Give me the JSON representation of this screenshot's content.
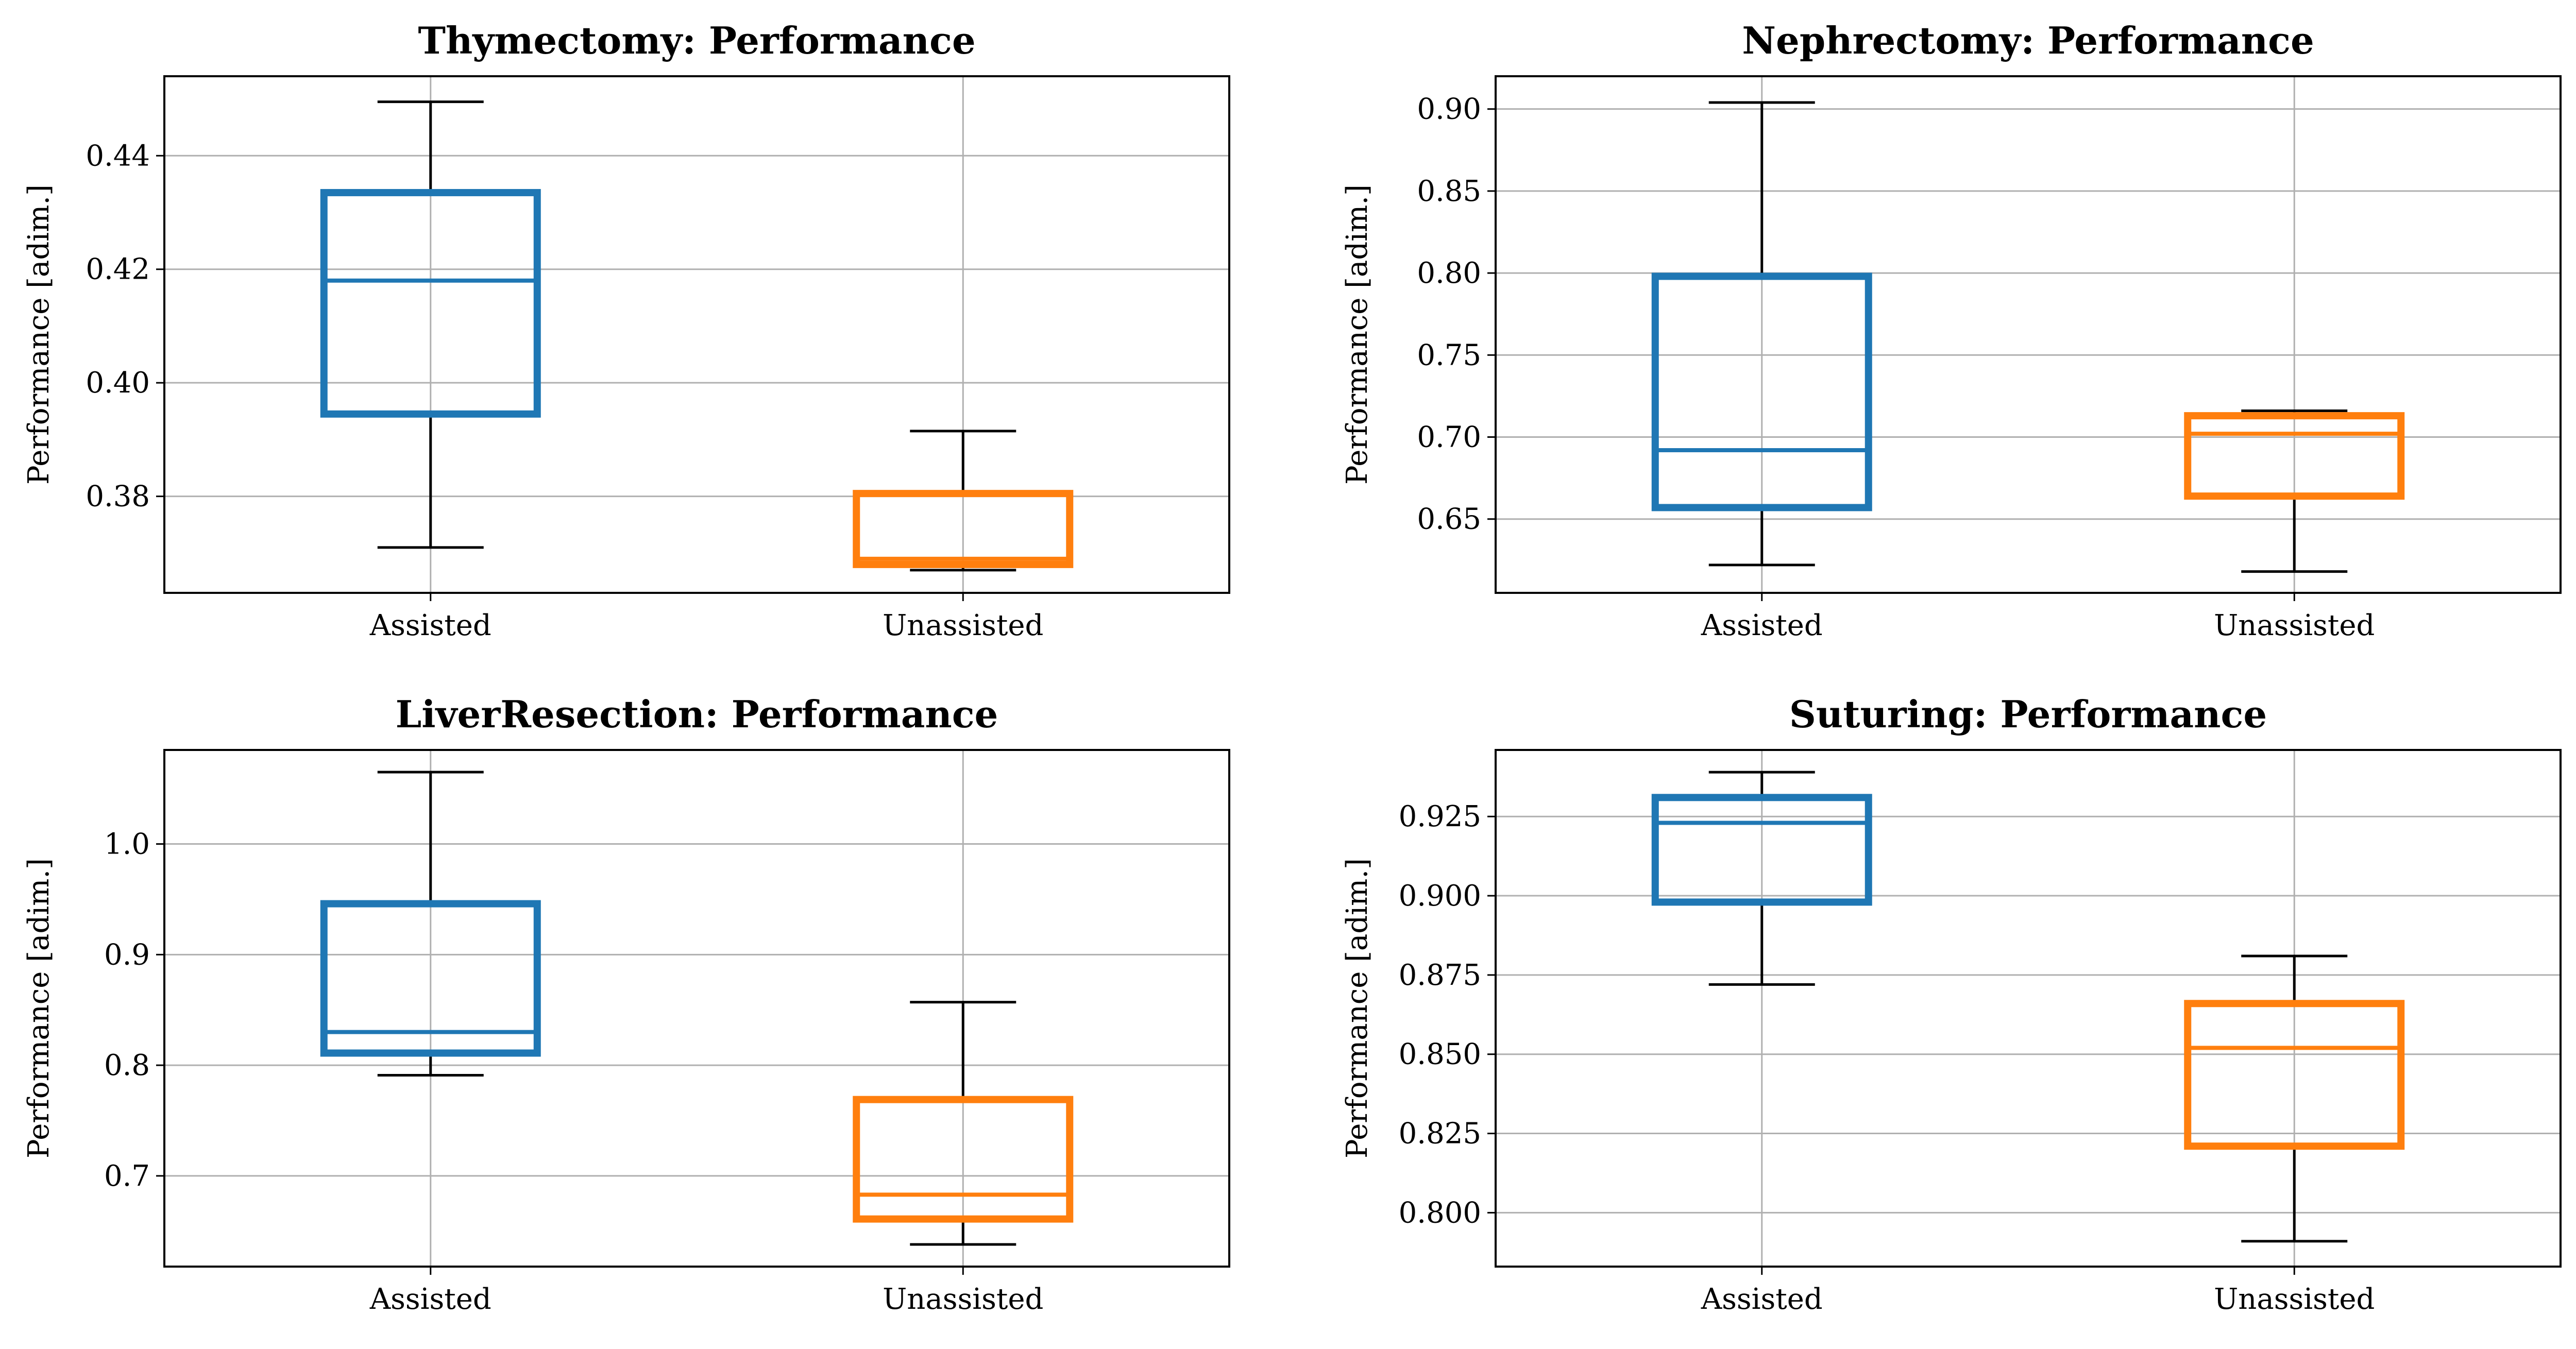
{
  "colors": {
    "assisted": "#1f77b4",
    "unassisted": "#ff7f0e",
    "grid": "#b0b0b0",
    "frame": "#000000"
  },
  "chart_data": [
    {
      "type": "box",
      "title": "Thymectomy:  Performance",
      "ylabel": "Performance [adim.]",
      "categories": [
        "Assisted",
        "Unassisted"
      ],
      "ylim": [
        0.363,
        0.454
      ],
      "yticks": [
        0.38,
        0.4,
        0.42,
        0.44
      ],
      "ytick_labels": [
        "0.38",
        "0.40",
        "0.42",
        "0.44"
      ],
      "grid": true,
      "boxes": [
        {
          "category": "Assisted",
          "whisker_low": 0.371,
          "q1": 0.3945,
          "median": 0.418,
          "q3": 0.4335,
          "whisker_high": 0.4495
        },
        {
          "category": "Unassisted",
          "whisker_low": 0.367,
          "q1": 0.368,
          "median": 0.369,
          "q3": 0.3805,
          "whisker_high": 0.3915
        }
      ]
    },
    {
      "type": "box",
      "title": "Nephrectomy:  Performance",
      "ylabel": "Performance [adim.]",
      "categories": [
        "Assisted",
        "Unassisted"
      ],
      "ylim": [
        0.605,
        0.92
      ],
      "yticks": [
        0.65,
        0.7,
        0.75,
        0.8,
        0.85,
        0.9
      ],
      "ytick_labels": [
        "0.65",
        "0.70",
        "0.75",
        "0.80",
        "0.85",
        "0.90"
      ],
      "grid": true,
      "boxes": [
        {
          "category": "Assisted",
          "whisker_low": 0.622,
          "q1": 0.657,
          "median": 0.692,
          "q3": 0.798,
          "whisker_high": 0.904
        },
        {
          "category": "Unassisted",
          "whisker_low": 0.618,
          "q1": 0.664,
          "median": 0.702,
          "q3": 0.713,
          "whisker_high": 0.716
        }
      ]
    },
    {
      "type": "box",
      "title": "LiverResection:  Performance",
      "ylabel": "Performance [adim.]",
      "categories": [
        "Assisted",
        "Unassisted"
      ],
      "ylim": [
        0.618,
        1.085
      ],
      "yticks": [
        0.7,
        0.8,
        0.9,
        1.0
      ],
      "ytick_labels": [
        "0.7",
        "0.8",
        "0.9",
        "1.0"
      ],
      "grid": true,
      "boxes": [
        {
          "category": "Assisted",
          "whisker_low": 0.791,
          "q1": 0.811,
          "median": 0.83,
          "q3": 0.946,
          "whisker_high": 1.065
        },
        {
          "category": "Unassisted",
          "whisker_low": 0.638,
          "q1": 0.661,
          "median": 0.683,
          "q3": 0.769,
          "whisker_high": 0.857
        }
      ]
    },
    {
      "type": "box",
      "title": "Suturing:  Performance",
      "ylabel": "Performance [adim.]",
      "categories": [
        "Assisted",
        "Unassisted"
      ],
      "ylim": [
        0.783,
        0.946
      ],
      "yticks": [
        0.8,
        0.825,
        0.85,
        0.875,
        0.9,
        0.925
      ],
      "ytick_labels": [
        "0.800",
        "0.825",
        "0.850",
        "0.875",
        "0.900",
        "0.925"
      ],
      "grid": true,
      "boxes": [
        {
          "category": "Assisted",
          "whisker_low": 0.872,
          "q1": 0.898,
          "median": 0.923,
          "q3": 0.931,
          "whisker_high": 0.939
        },
        {
          "category": "Unassisted",
          "whisker_low": 0.791,
          "q1": 0.821,
          "median": 0.852,
          "q3": 0.866,
          "whisker_high": 0.881
        }
      ]
    }
  ]
}
